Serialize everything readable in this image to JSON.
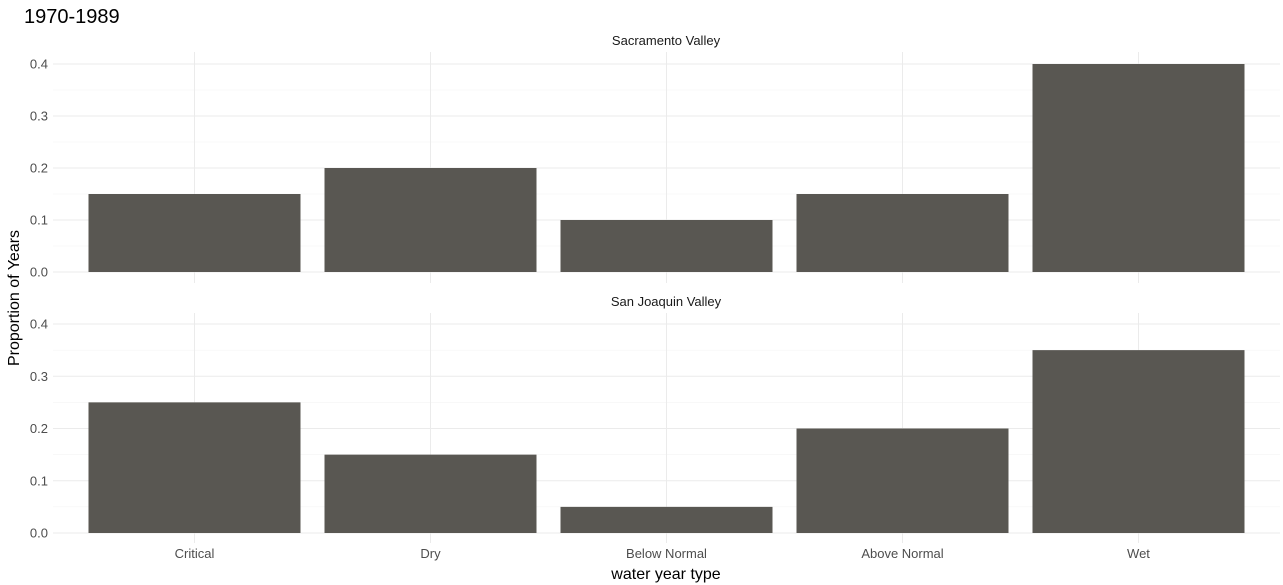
{
  "chart_data": {
    "type": "bar",
    "title": "1970-1989",
    "xlabel": "water year type",
    "ylabel": "Proportion of Years",
    "categories": [
      "Critical",
      "Dry",
      "Below Normal",
      "Above Normal",
      "Wet"
    ],
    "ylim": [
      0,
      0.4
    ],
    "yticks": [
      "0.0",
      "0.1",
      "0.2",
      "0.3",
      "0.4"
    ],
    "grid": true,
    "bar_color": "#595752",
    "facets": [
      {
        "label": "Sacramento Valley",
        "values": [
          0.15,
          0.2,
          0.1,
          0.15,
          0.4
        ]
      },
      {
        "label": "San Joaquin Valley",
        "values": [
          0.25,
          0.15,
          0.05,
          0.2,
          0.35
        ]
      }
    ]
  }
}
